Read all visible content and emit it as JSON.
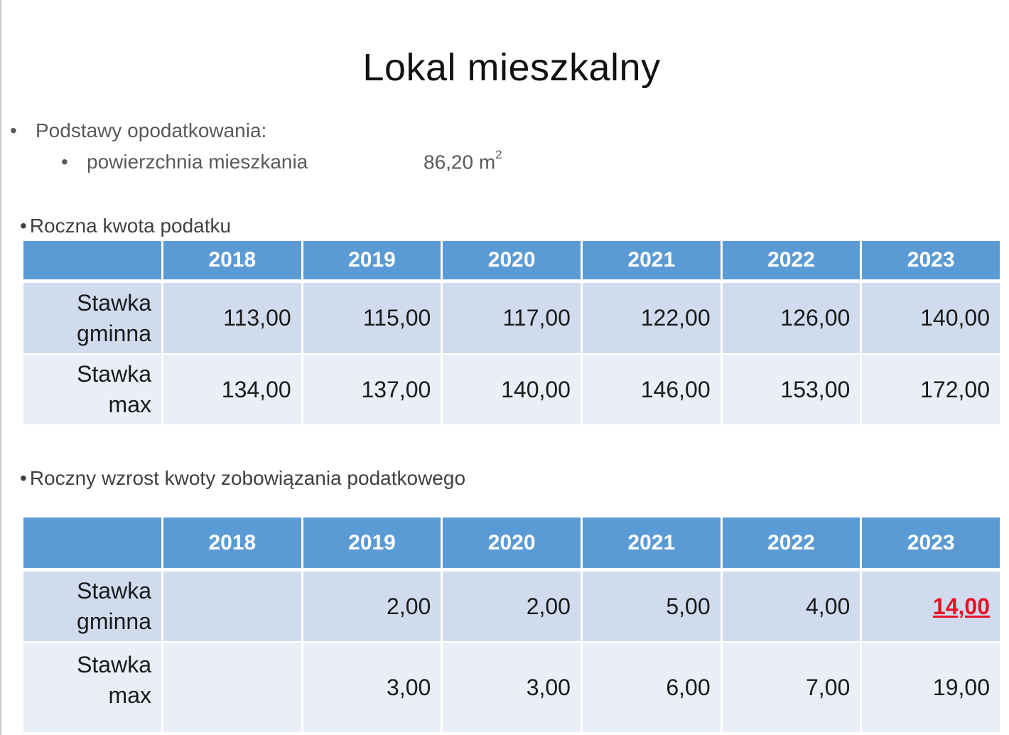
{
  "title": "Lokal mieszkalny",
  "basis": {
    "heading": "Podstawy opodatkowania:",
    "item_label": "powierzchnia mieszkania",
    "item_value": "86,20 m",
    "item_unit_sup": "2"
  },
  "bullet_symbol": "•",
  "table1": {
    "label": "Roczna kwota podatku",
    "headers": [
      "",
      "2018",
      "2019",
      "2020",
      "2021",
      "2022",
      "2023"
    ],
    "rows": [
      {
        "label_l1": "Stawka",
        "label_l2": "gminna",
        "values": [
          "113,00",
          "115,00",
          "117,00",
          "122,00",
          "126,00",
          "140,00"
        ]
      },
      {
        "label_l1": "Stawka",
        "label_l2": "max",
        "values": [
          "134,00",
          "137,00",
          "140,00",
          "146,00",
          "153,00",
          "172,00"
        ]
      }
    ]
  },
  "table2": {
    "label": "Roczny wzrost kwoty zobowiązania podatkowego",
    "headers": [
      "",
      "2018",
      "2019",
      "2020",
      "2021",
      "2022",
      "2023"
    ],
    "rows": [
      {
        "label_l1": "Stawka",
        "label_l2": "gminna",
        "values": [
          "",
          "2,00",
          "2,00",
          "5,00",
          "4,00",
          "14,00"
        ]
      },
      {
        "label_l1": "Stawka",
        "label_l2": "max",
        "values": [
          "",
          "3,00",
          "3,00",
          "6,00",
          "7,00",
          "19,00"
        ]
      }
    ]
  },
  "colors": {
    "header_bg": "#5b9bd5",
    "row_odd": "#d0dcee",
    "row_even": "#e9eef7",
    "highlight": "#e81123"
  }
}
